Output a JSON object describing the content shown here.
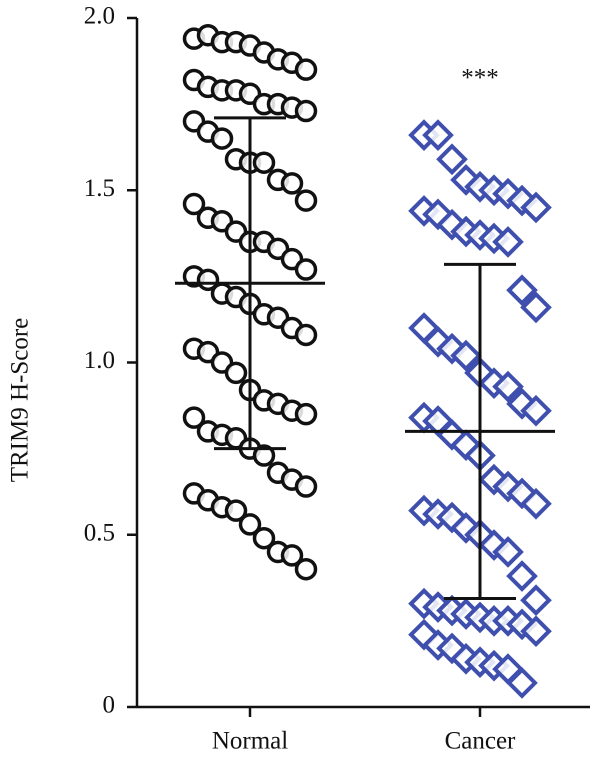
{
  "chart_data": {
    "type": "strip",
    "y_label": "TRIM9 H-Score",
    "annotation": "***",
    "categories": [
      "Normal",
      "Cancer"
    ],
    "ylim": [
      0,
      2.0
    ],
    "yticks": [
      0,
      0.5,
      {
        "value": 1.0,
        "label": "1.0"
      },
      1.5,
      {
        "value": 2.0,
        "label": "2.0"
      }
    ],
    "series": [
      {
        "color": "#111111",
        "marker": "circle",
        "mean": 1.23,
        "sd": 0.48,
        "values": [
          1.94,
          1.95,
          1.93,
          1.93,
          1.92,
          1.9,
          1.88,
          1.87,
          1.85,
          1.82,
          1.8,
          1.79,
          1.79,
          1.78,
          1.75,
          1.75,
          1.74,
          1.73,
          1.7,
          1.67,
          1.65,
          1.59,
          1.58,
          1.58,
          1.53,
          1.52,
          1.47,
          1.46,
          1.42,
          1.41,
          1.38,
          1.35,
          1.35,
          1.33,
          1.3,
          1.27,
          1.25,
          1.24,
          1.2,
          1.19,
          1.17,
          1.14,
          1.13,
          1.1,
          1.08,
          1.04,
          1.03,
          1.0,
          0.97,
          0.92,
          0.89,
          0.88,
          0.86,
          0.85,
          0.84,
          0.8,
          0.79,
          0.78,
          0.75,
          0.73,
          0.68,
          0.66,
          0.64,
          0.62,
          0.6,
          0.58,
          0.57,
          0.53,
          0.49,
          0.45,
          0.44,
          0.4
        ]
      },
      {
        "color": "#3f4fae",
        "marker": "diamond",
        "mean": 0.8,
        "sd": 0.485,
        "values": [
          1.66,
          1.66,
          1.59,
          1.53,
          1.51,
          1.5,
          1.49,
          1.47,
          1.45,
          1.44,
          1.43,
          1.4,
          1.38,
          1.37,
          1.36,
          1.35,
          1.21,
          1.16,
          1.1,
          1.06,
          1.04,
          1.02,
          0.97,
          0.94,
          0.93,
          0.88,
          0.86,
          0.84,
          0.83,
          0.79,
          0.76,
          0.73,
          0.66,
          0.64,
          0.62,
          0.59,
          0.57,
          0.56,
          0.55,
          0.52,
          0.5,
          0.47,
          0.45,
          0.38,
          0.31,
          0.3,
          0.29,
          0.28,
          0.27,
          0.26,
          0.25,
          0.25,
          0.24,
          0.22,
          0.21,
          0.18,
          0.17,
          0.14,
          0.13,
          0.12,
          0.11,
          0.07
        ]
      }
    ]
  }
}
